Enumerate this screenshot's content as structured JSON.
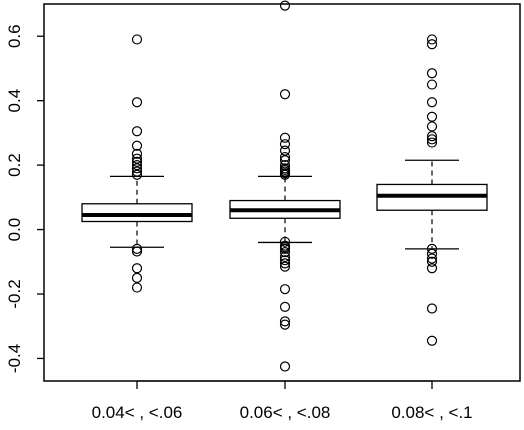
{
  "chart_data": {
    "type": "boxplot",
    "title": "",
    "xlabel": "",
    "ylabel": "",
    "ylim": [
      -0.47,
      0.7
    ],
    "y_ticks": [
      "-0.4",
      "-0.2",
      "0.0",
      "0.2",
      "0.4",
      "0.6"
    ],
    "categories": [
      "0.04< , <.06",
      "0.06< , <.08",
      "0.08< , <.1"
    ],
    "grid": false,
    "legend": "none",
    "boxes": [
      {
        "whisker_low": -0.055,
        "q1": 0.025,
        "median": 0.045,
        "q3": 0.08,
        "whisker_high": 0.165,
        "outliers": [
          0.59,
          0.395,
          0.305,
          0.26,
          0.235,
          0.22,
          0.21,
          0.2,
          0.19,
          0.18,
          0.17,
          -0.06,
          -0.068,
          -0.12,
          -0.15,
          -0.18
        ]
      },
      {
        "whisker_low": -0.04,
        "q1": 0.035,
        "median": 0.06,
        "q3": 0.09,
        "whisker_high": 0.165,
        "outliers": [
          0.695,
          0.42,
          0.285,
          0.265,
          0.245,
          0.225,
          0.215,
          0.2,
          0.19,
          0.185,
          0.18,
          0.175,
          0.17,
          -0.038,
          -0.05,
          -0.055,
          -0.06,
          -0.07,
          -0.085,
          -0.095,
          -0.105,
          -0.115,
          -0.185,
          -0.24,
          -0.285,
          -0.295,
          -0.425
        ]
      },
      {
        "whisker_low": -0.06,
        "q1": 0.06,
        "median": 0.105,
        "q3": 0.14,
        "whisker_high": 0.215,
        "outliers": [
          0.59,
          0.575,
          0.485,
          0.45,
          0.395,
          0.35,
          0.32,
          0.29,
          0.28,
          0.27,
          -0.06,
          -0.075,
          -0.09,
          -0.1,
          -0.12,
          -0.245,
          -0.345
        ]
      }
    ],
    "colors": {
      "box_fill": "#ffffff",
      "stroke": "#000000"
    }
  }
}
